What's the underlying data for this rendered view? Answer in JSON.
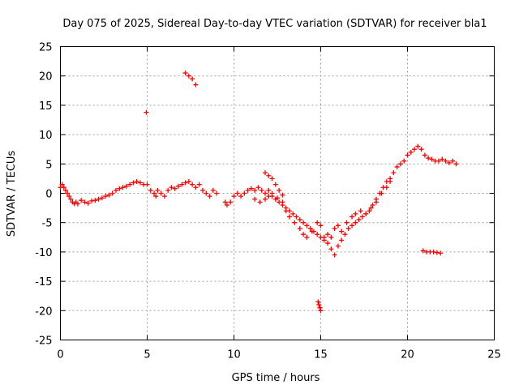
{
  "chart_data": {
    "type": "scatter",
    "title": "Day 075 of 2025, Sidereal Day-to-day VTEC variation (SDTVAR) for receiver bla1",
    "xlabel": "GPS time / hours",
    "ylabel": "SDTVAR / TECUs",
    "xlim": [
      0,
      25
    ],
    "ylim": [
      -25,
      25
    ],
    "xticks": [
      0,
      5,
      10,
      15,
      20,
      25
    ],
    "yticks": [
      -25,
      -20,
      -15,
      -10,
      -5,
      0,
      5,
      10,
      15,
      20,
      25
    ],
    "grid": true,
    "marker": "+",
    "marker_color": "#ff0000",
    "series": [
      {
        "name": "SDTVAR",
        "x": [
          0.0,
          0.1,
          0.2,
          0.3,
          0.4,
          0.5,
          0.6,
          0.7,
          0.8,
          0.9,
          1.0,
          1.2,
          1.4,
          1.6,
          1.8,
          2.0,
          2.2,
          2.4,
          2.6,
          2.8,
          3.0,
          3.2,
          3.4,
          3.6,
          3.8,
          4.0,
          4.2,
          4.4,
          4.6,
          4.8,
          5.0,
          5.2,
          5.4,
          5.5,
          5.6,
          5.8,
          6.0,
          6.2,
          6.4,
          6.6,
          6.8,
          7.0,
          7.2,
          7.4,
          7.6,
          7.8,
          8.0,
          8.2,
          8.4,
          8.6,
          8.8,
          9.0,
          9.5,
          9.6,
          9.8,
          10.0,
          10.2,
          10.4,
          10.6,
          10.8,
          11.0,
          11.2,
          11.4,
          11.6,
          11.8,
          12.0,
          12.2,
          12.4,
          12.6,
          12.8,
          13.0,
          13.2,
          13.4,
          13.6,
          13.8,
          14.0,
          14.2,
          14.4,
          14.6,
          14.8,
          15.0,
          15.2,
          15.4,
          15.6,
          15.8,
          16.0,
          16.2,
          16.4,
          16.6,
          16.8,
          17.0,
          17.2,
          17.4,
          17.6,
          17.8,
          18.0,
          18.2,
          18.4,
          18.6,
          18.8,
          19.0,
          19.2,
          19.4,
          19.6,
          19.8,
          20.0,
          20.2,
          20.4,
          20.6,
          20.8,
          21.0,
          21.2,
          21.4,
          21.6,
          21.8,
          22.0,
          22.2,
          22.4,
          22.6,
          22.8,
          11.2,
          11.5,
          11.8,
          12.0,
          12.2,
          12.5,
          12.8,
          13.0,
          13.2,
          13.5,
          13.8,
          14.0,
          14.2,
          14.5,
          14.8,
          15.0,
          15.2,
          15.4,
          15.6,
          15.8,
          16.0,
          16.2,
          16.5,
          16.8,
          17.0,
          17.3,
          17.6,
          17.9,
          18.2,
          18.5,
          18.8,
          19.0,
          7.2,
          7.4,
          7.6,
          7.8,
          4.95,
          14.85,
          14.9,
          14.95,
          15.0,
          20.9,
          21.1,
          21.3,
          21.5,
          21.7,
          21.9,
          11.8,
          12.0,
          12.2,
          12.4,
          12.6,
          12.8
        ],
        "y": [
          1.0,
          1.5,
          1.0,
          0.5,
          0.0,
          -0.5,
          -1.0,
          -1.5,
          -1.8,
          -1.5,
          -1.8,
          -1.2,
          -1.5,
          -1.7,
          -1.3,
          -1.2,
          -1.0,
          -0.8,
          -0.5,
          -0.3,
          0.0,
          0.5,
          0.8,
          1.0,
          1.2,
          1.5,
          1.8,
          2.0,
          1.8,
          1.5,
          1.5,
          0.5,
          0.0,
          -0.5,
          0.5,
          0.0,
          -0.5,
          0.5,
          1.0,
          0.8,
          1.2,
          1.5,
          1.8,
          2.0,
          1.5,
          1.0,
          1.5,
          0.5,
          0.0,
          -0.5,
          0.5,
          0.0,
          -1.5,
          -2.0,
          -1.5,
          -0.5,
          0.0,
          -0.5,
          0.0,
          0.5,
          0.8,
          0.5,
          1.0,
          0.5,
          0.0,
          0.5,
          -0.5,
          -1.0,
          -1.5,
          -2.0,
          -2.5,
          -3.0,
          -3.5,
          -4.0,
          -4.5,
          -5.0,
          -5.5,
          -6.0,
          -6.5,
          -7.0,
          -7.5,
          -8.0,
          -8.5,
          -9.5,
          -10.5,
          -9.0,
          -8.0,
          -7.0,
          -6.0,
          -5.5,
          -5.0,
          -4.5,
          -4.0,
          -3.5,
          -3.0,
          -2.0,
          -1.0,
          0.0,
          1.0,
          2.0,
          2.5,
          3.5,
          4.5,
          5.0,
          5.5,
          6.5,
          7.0,
          7.5,
          8.0,
          7.5,
          6.5,
          6.0,
          5.8,
          5.5,
          5.5,
          5.8,
          5.5,
          5.2,
          5.5,
          5.0,
          -1.0,
          -1.5,
          -1.0,
          -0.5,
          0.0,
          -0.8,
          -1.5,
          -3.0,
          -4.0,
          -5.0,
          -6.0,
          -7.0,
          -7.5,
          -6.5,
          -5.0,
          -5.5,
          -7.5,
          -7.0,
          -7.5,
          -6.0,
          -5.5,
          -6.5,
          -5.0,
          -4.0,
          -3.5,
          -3.0,
          -3.5,
          -2.5,
          -1.5,
          0.0,
          1.0,
          2.0,
          20.5,
          20.0,
          19.5,
          18.5,
          13.8,
          -18.5,
          -19.0,
          -19.5,
          -20.0,
          -9.8,
          -10.0,
          -10.0,
          -10.0,
          -10.1,
          -10.2,
          3.5,
          3.0,
          2.5,
          1.5,
          0.5,
          -0.3
        ]
      }
    ]
  }
}
